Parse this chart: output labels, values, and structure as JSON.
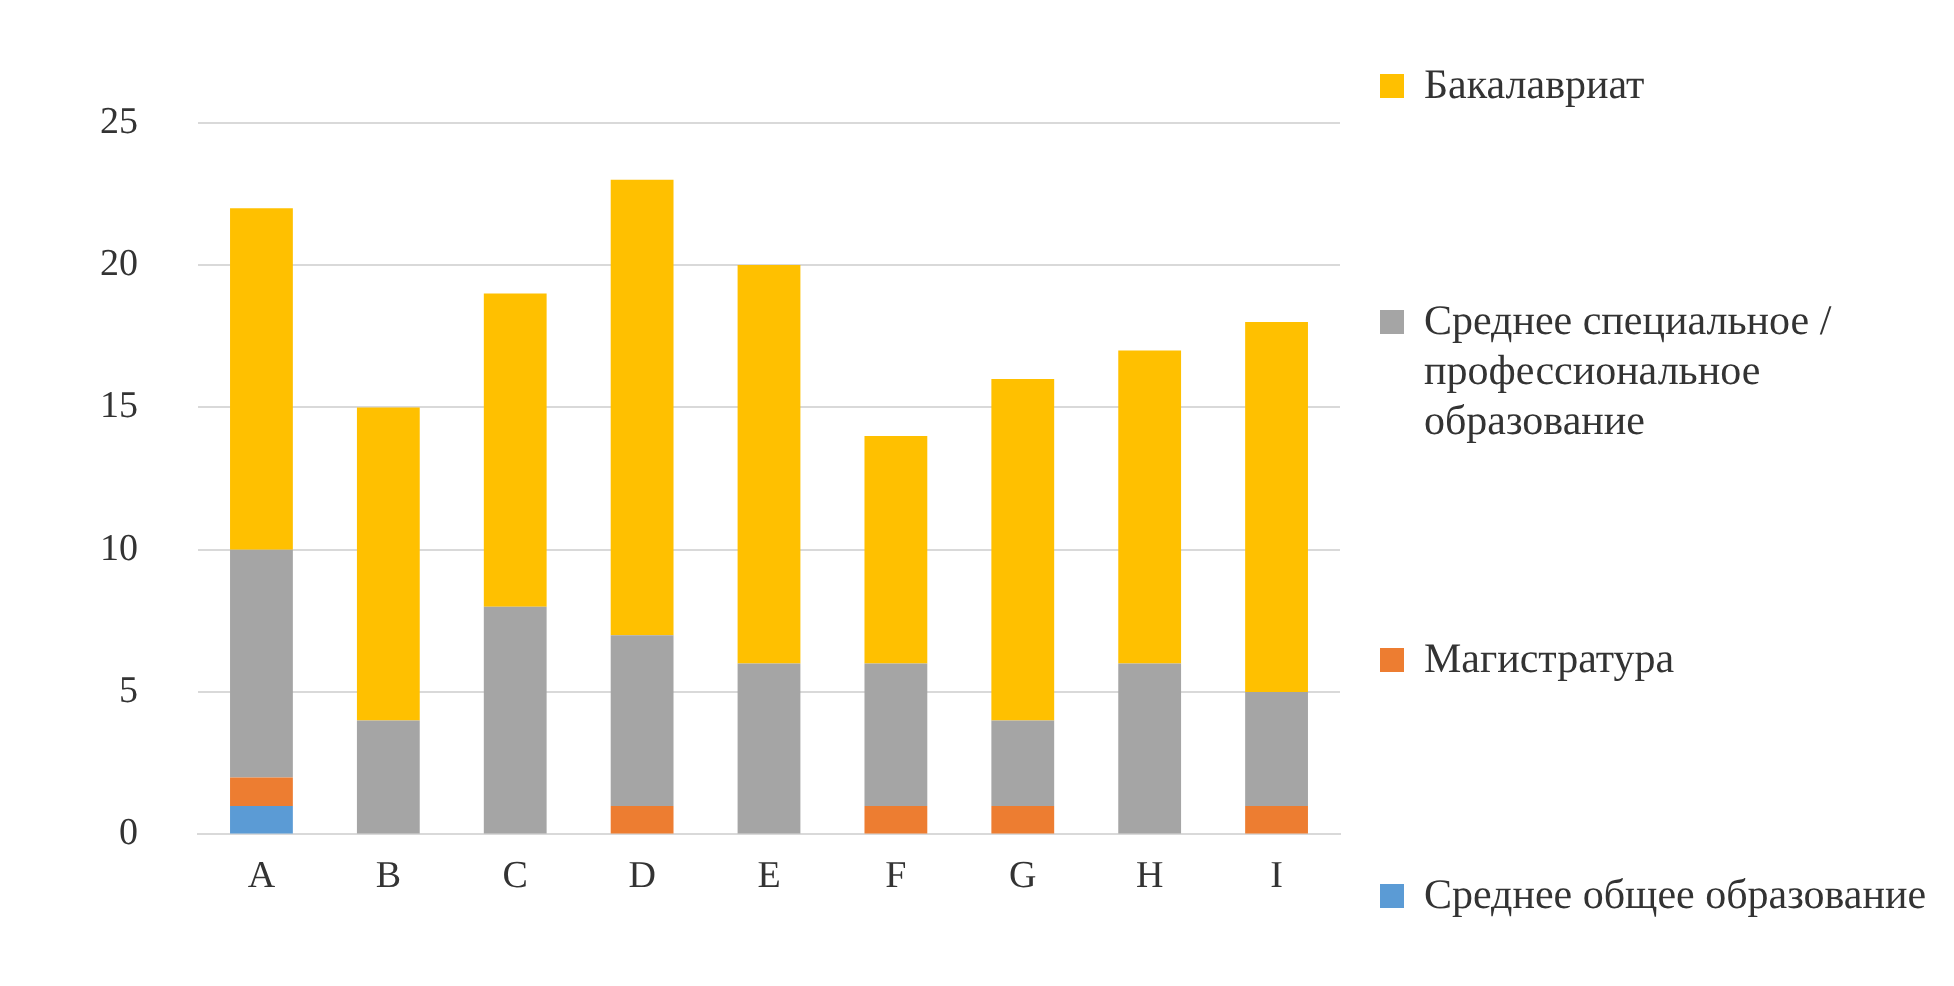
{
  "chart_data": {
    "type": "bar",
    "stacked": true,
    "categories": [
      "A",
      "B",
      "C",
      "D",
      "E",
      "F",
      "G",
      "H",
      "I"
    ],
    "series": [
      {
        "name": "Среднее общее образование",
        "color": "#5b9bd5",
        "values": [
          1,
          0,
          0,
          0,
          0,
          0,
          0,
          0,
          0
        ]
      },
      {
        "name": "Магистратура",
        "color": "#ed7d31",
        "values": [
          1,
          0,
          0,
          1,
          0,
          1,
          1,
          0,
          1
        ]
      },
      {
        "name": "Среднее специальное /профессиональное образование",
        "color": "#a5a5a5",
        "values": [
          8,
          4,
          8,
          6,
          6,
          5,
          3,
          6,
          4
        ]
      },
      {
        "name": "Бакалавриат",
        "color": "#ffc000",
        "values": [
          12,
          11,
          11,
          16,
          14,
          8,
          12,
          11,
          13
        ]
      }
    ],
    "ylim": [
      0,
      25
    ],
    "yticks": [
      0,
      5,
      10,
      15,
      20,
      25
    ],
    "grid": "y",
    "legend": "right"
  }
}
